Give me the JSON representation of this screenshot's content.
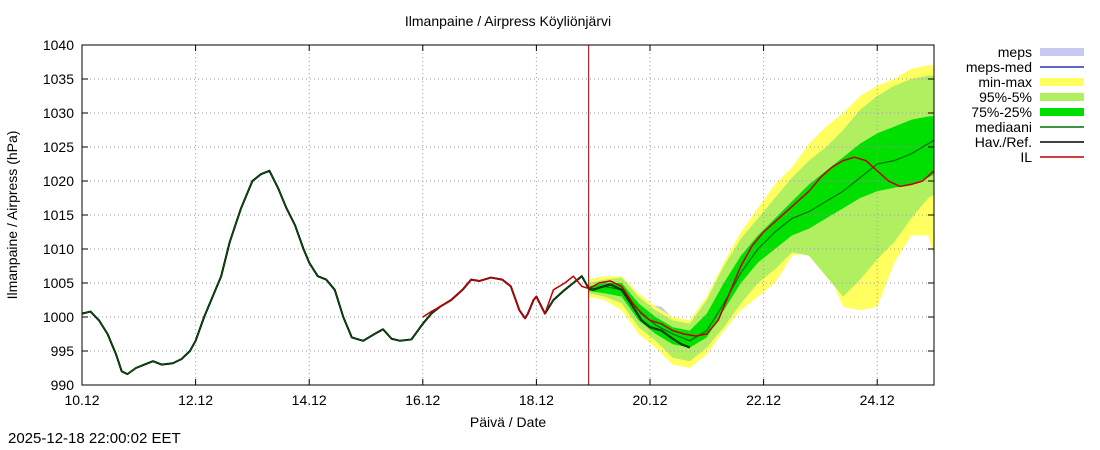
{
  "chart_data": {
    "type": "line",
    "title": "Ilmanpaine / Airpress Köyliönjärvi",
    "xlabel": "Päivä / Date",
    "ylabel": "Ilmanpaine / Airpress (hPa)",
    "ylim": [
      990,
      1040
    ],
    "xlim": [
      0,
      15
    ],
    "x_unit": "days since 10.12 00:00",
    "y_ticks": [
      990,
      995,
      1000,
      1005,
      1010,
      1015,
      1020,
      1025,
      1030,
      1035,
      1040
    ],
    "x_ticks": [
      {
        "x": 0,
        "label": "10.12"
      },
      {
        "x": 2,
        "label": "12.12"
      },
      {
        "x": 4,
        "label": "14.12"
      },
      {
        "x": 6,
        "label": "16.12"
      },
      {
        "x": 8,
        "label": "18.12"
      },
      {
        "x": 10,
        "label": "20.12"
      },
      {
        "x": 12,
        "label": "22.12"
      },
      {
        "x": 14,
        "label": "24.12"
      }
    ],
    "forecast_start_x": 8.92,
    "legend": [
      {
        "label": "meps",
        "color": "#c8c8f0",
        "style": "box"
      },
      {
        "label": "meps-med",
        "color": "#3030b0",
        "style": "line"
      },
      {
        "label": "min-max",
        "color": "#ffff60",
        "style": "box"
      },
      {
        "label": "95%-5%",
        "color": "#b0f060",
        "style": "box"
      },
      {
        "label": "75%-25%",
        "color": "#00e000",
        "style": "box"
      },
      {
        "label": "mediaani",
        "color": "#007000",
        "style": "line"
      },
      {
        "label": "Hav./Ref.",
        "color": "#000000",
        "style": "line"
      },
      {
        "label": "IL",
        "color": "#c00000",
        "style": "line"
      }
    ],
    "series": {
      "observed": {
        "name": "Hav./Ref.",
        "x": [
          0,
          0.15,
          0.3,
          0.45,
          0.6,
          0.7,
          0.8,
          0.95,
          1.1,
          1.25,
          1.4,
          1.6,
          1.75,
          1.9,
          2.0,
          2.15,
          2.3,
          2.45,
          2.6,
          2.8,
          3.0,
          3.15,
          3.3,
          3.45,
          3.6,
          3.75,
          3.9,
          4.0,
          4.15,
          4.3,
          4.45,
          4.6,
          4.75,
          4.95,
          5.15,
          5.3,
          5.45,
          5.6,
          5.8,
          6.0,
          6.15,
          6.3,
          6.5,
          6.7,
          6.85,
          7.0,
          7.2,
          7.4,
          7.55,
          7.7,
          7.8,
          7.85,
          7.95,
          8.0,
          8.15,
          8.3,
          8.5,
          8.65,
          8.8,
          8.92,
          9.0,
          9.1,
          9.3,
          9.5,
          9.7,
          9.85,
          10.0,
          10.2,
          10.4,
          10.55,
          10.7
        ],
        "y": [
          1000.5,
          1000.8,
          999.5,
          997.5,
          994.5,
          992.0,
          991.6,
          992.5,
          993.0,
          993.5,
          993.0,
          993.2,
          993.8,
          995.0,
          996.5,
          1000.0,
          1003.0,
          1006.0,
          1011.0,
          1016.0,
          1020.0,
          1021.0,
          1021.5,
          1019.0,
          1016.0,
          1013.5,
          1010.0,
          1008.0,
          1006.0,
          1005.5,
          1004.0,
          1000.0,
          997.0,
          996.5,
          997.5,
          998.2,
          996.8,
          996.5,
          996.7,
          999.0,
          1000.5,
          1001.5,
          1002.5,
          1004.0,
          1005.5,
          1005.3,
          1005.8,
          1005.5,
          1004.5,
          1001.0,
          999.8,
          1000.5,
          1002.5,
          1003.0,
          1000.5,
          1002.5,
          1004.0,
          1005.0,
          1006.0,
          1004.2,
          1004.0,
          1004.3,
          1004.8,
          1004.0,
          1001.5,
          999.5,
          998.5,
          998.0,
          996.8,
          996.0,
          995.5
        ]
      },
      "il": {
        "name": "IL",
        "x": [
          6.0,
          6.15,
          6.3,
          6.5,
          6.7,
          6.85,
          7.0,
          7.2,
          7.4,
          7.55,
          7.7,
          7.8,
          7.85,
          7.95,
          8.0,
          8.15,
          8.3,
          8.5,
          8.65,
          8.8,
          8.92,
          9.0,
          9.1,
          9.3,
          9.5,
          9.7,
          9.85,
          10.0,
          10.2,
          10.4,
          10.6,
          10.8,
          11.0,
          11.2,
          11.4,
          11.6,
          11.8,
          12.0,
          12.2,
          12.4,
          12.6,
          12.8,
          13.0,
          13.2,
          13.4,
          13.6,
          13.8,
          14.0,
          14.2,
          14.4,
          14.6,
          14.8,
          15.0
        ],
        "y": [
          1000.0,
          1000.8,
          1001.5,
          1002.5,
          1004.0,
          1005.5,
          1005.3,
          1005.8,
          1005.5,
          1004.5,
          1001.0,
          999.8,
          1000.5,
          1002.5,
          1003.0,
          1000.5,
          1004.0,
          1005.0,
          1006.0,
          1004.5,
          1004.2,
          1004.5,
          1005.0,
          1005.3,
          1004.5,
          1002.0,
          1000.5,
          999.5,
          999.0,
          998.0,
          997.5,
          997.2,
          997.5,
          999.5,
          1003.5,
          1007.5,
          1010.5,
          1012.5,
          1014.0,
          1015.5,
          1017.0,
          1018.5,
          1020.5,
          1022.0,
          1023.0,
          1023.5,
          1023.0,
          1021.5,
          1020.0,
          1019.2,
          1019.5,
          1020.0,
          1021.5
        ]
      },
      "median": {
        "name": "mediaani",
        "x": [
          8.92,
          9.2,
          9.5,
          9.8,
          10.1,
          10.4,
          10.7,
          11.0,
          11.3,
          11.6,
          11.9,
          12.2,
          12.5,
          12.8,
          13.1,
          13.4,
          13.7,
          14.0,
          14.3,
          14.6,
          14.9,
          15.0
        ],
        "y": [
          1004.0,
          1004.5,
          1004.0,
          1001.0,
          998.8,
          997.5,
          996.5,
          998.0,
          1002.0,
          1006.5,
          1010.0,
          1012.5,
          1014.5,
          1015.5,
          1017.0,
          1018.5,
          1020.5,
          1022.5,
          1023.0,
          1024.0,
          1025.5,
          1026.0
        ]
      },
      "band_minmax": {
        "name": "min-max",
        "x": [
          8.92,
          9.2,
          9.5,
          9.8,
          10.1,
          10.4,
          10.7,
          11.0,
          11.3,
          11.6,
          11.9,
          12.2,
          12.5,
          12.8,
          13.1,
          13.4,
          13.7,
          14.0,
          14.3,
          14.6,
          14.9,
          15.0
        ],
        "lo": [
          1003.0,
          1002.5,
          1001.0,
          997.5,
          995.5,
          993.0,
          992.5,
          994.5,
          998.0,
          1001.0,
          1003.0,
          1005.0,
          1009.0,
          1009.5,
          1007.5,
          1001.5,
          1001.0,
          1001.5,
          1008.0,
          1012.0,
          1012.0,
          1009.0
        ],
        "hi": [
          1005.5,
          1006.0,
          1006.0,
          1003.5,
          1001.5,
          1000.0,
          999.5,
          1003.0,
          1008.0,
          1012.5,
          1016.0,
          1019.5,
          1022.0,
          1025.5,
          1028.0,
          1030.0,
          1032.5,
          1034.0,
          1035.0,
          1036.5,
          1037.0,
          1037.0
        ]
      },
      "band_95_5": {
        "name": "95%-5%",
        "x": [
          8.92,
          9.2,
          9.5,
          9.8,
          10.1,
          10.4,
          10.7,
          11.0,
          11.3,
          11.6,
          11.9,
          12.2,
          12.5,
          12.8,
          13.1,
          13.4,
          13.7,
          14.0,
          14.3,
          14.6,
          14.9,
          15.0
        ],
        "lo": [
          1003.5,
          1003.0,
          1002.0,
          998.5,
          996.5,
          994.0,
          993.5,
          995.5,
          998.5,
          1002.0,
          1005.0,
          1007.0,
          1009.5,
          1009.0,
          1006.0,
          1003.0,
          1005.5,
          1008.5,
          1011.0,
          1014.5,
          1017.5,
          1018.0
        ],
        "hi": [
          1005.0,
          1005.5,
          1005.8,
          1003.0,
          1001.0,
          999.5,
          999.0,
          1002.5,
          1007.5,
          1011.5,
          1014.5,
          1017.5,
          1020.5,
          1023.0,
          1025.0,
          1027.5,
          1030.5,
          1032.5,
          1034.0,
          1035.0,
          1035.5,
          1035.5
        ]
      },
      "band_75_25": {
        "name": "75%-25%",
        "x": [
          8.92,
          9.2,
          9.5,
          9.8,
          10.1,
          10.4,
          10.7,
          11.0,
          11.3,
          11.6,
          11.9,
          12.2,
          12.5,
          12.8,
          13.1,
          13.4,
          13.7,
          14.0,
          14.3,
          14.6,
          14.9,
          15.0
        ],
        "lo": [
          1003.8,
          1003.5,
          1003.0,
          999.5,
          997.5,
          996.0,
          995.5,
          997.0,
          1001.0,
          1005.0,
          1008.0,
          1010.0,
          1012.0,
          1013.0,
          1014.5,
          1016.0,
          1017.5,
          1018.5,
          1019.0,
          1019.5,
          1020.5,
          1021.0
        ],
        "hi": [
          1004.5,
          1005.0,
          1005.0,
          1002.0,
          1000.0,
          998.5,
          998.0,
          1000.5,
          1005.0,
          1009.0,
          1012.0,
          1014.5,
          1017.0,
          1019.5,
          1021.5,
          1023.5,
          1025.5,
          1027.0,
          1028.0,
          1029.0,
          1029.5,
          1029.5
        ]
      },
      "band_meps": {
        "name": "meps",
        "x": [
          8.92,
          9.3,
          9.6,
          9.9,
          10.2,
          10.5,
          10.8,
          11.1
        ],
        "lo": [
          1003.5,
          1002.5,
          1001.0,
          998.5,
          997.0,
          996.0,
          996.0,
          998.0
        ],
        "hi": [
          1005.0,
          1005.5,
          1004.5,
          1002.0,
          1001.5,
          999.0,
          999.0,
          1001.5
        ]
      }
    },
    "timestamp": "2025-12-18 22:00:02 EET"
  }
}
